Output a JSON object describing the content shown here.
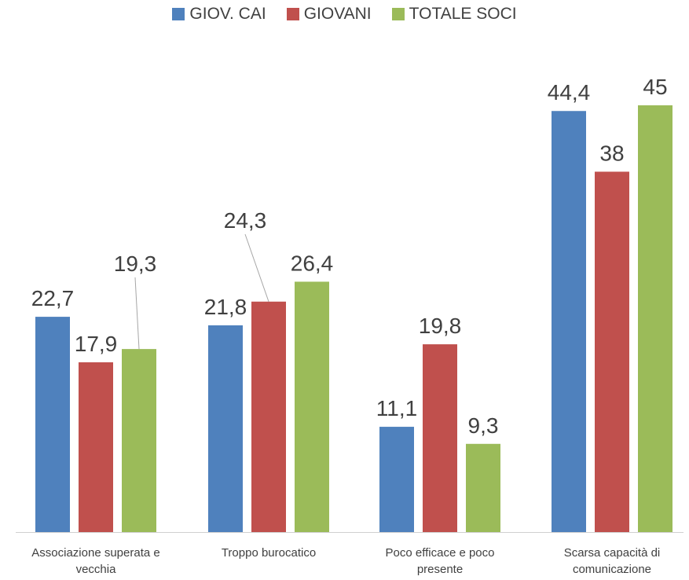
{
  "chart_data": {
    "type": "bar",
    "categories": [
      [
        "Associazione superata e",
        "vecchia"
      ],
      [
        "Troppo burocatico"
      ],
      [
        "Poco efficace e poco",
        "presente"
      ],
      [
        "Scarsa capacità di",
        "comunicazione"
      ]
    ],
    "series": [
      {
        "name": "GIOV. CAI",
        "color": "#4f81bd",
        "values": [
          22.7,
          21.8,
          11.1,
          44.4
        ],
        "labels": [
          "22,7",
          "21,8",
          "11,1",
          "44,4"
        ]
      },
      {
        "name": "GIOVANI",
        "color": "#c0504d",
        "values": [
          17.9,
          24.3,
          19.8,
          38
        ],
        "labels": [
          "17,9",
          "24,3",
          "19,8",
          "38"
        ]
      },
      {
        "name": "TOTALE SOCI",
        "color": "#9bbb59",
        "values": [
          19.3,
          26.4,
          9.3,
          45
        ],
        "labels": [
          "19,3",
          "26,4",
          "9,3",
          "45"
        ]
      }
    ],
    "ylim": [
      0,
      45
    ],
    "grid": false,
    "legend_position": "top"
  }
}
